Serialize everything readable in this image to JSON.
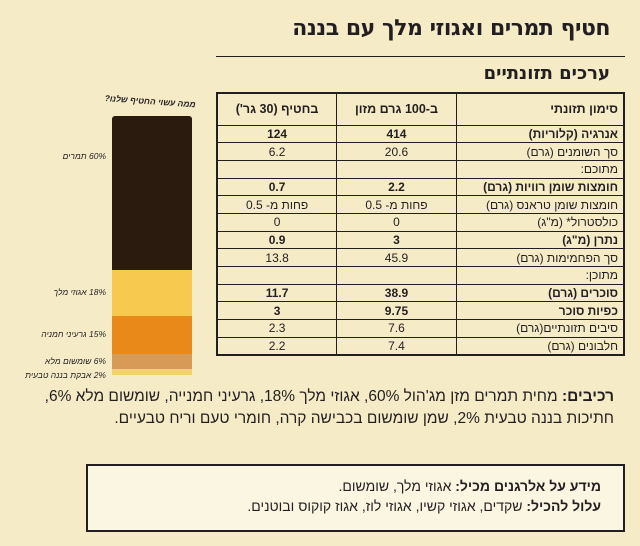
{
  "product": {
    "title": "חטיף תמרים ואגוזי מלך עם בננה"
  },
  "nutrition": {
    "section_title": "ערכים תזונתיים",
    "headers": [
      "סימון תזונתי",
      "ב-100 גרם מזון",
      "בחטיף (30 גר')"
    ],
    "rows": [
      {
        "label": "אנרגיה (קלוריות)",
        "per100": "414",
        "perServing": "124",
        "bold": true
      },
      {
        "label": "סך השומנים (גרם)",
        "per100": "20.6",
        "perServing": "6.2",
        "bold": false
      },
      {
        "label": "מתוכם:",
        "per100": "",
        "perServing": "",
        "bold": false
      },
      {
        "label": "חומצות שומן רוויות (גרם)",
        "per100": "2.2",
        "perServing": "0.7",
        "bold": true
      },
      {
        "label": "חומצות שומן טראנס (גרם)",
        "per100": "פחות מ- 0.5",
        "perServing": "פחות מ- 0.5",
        "bold": false
      },
      {
        "label": "כולסטרול* (מ\"ג)",
        "per100": "0",
        "perServing": "0",
        "bold": false
      },
      {
        "label": "נתרן (מ\"ג)",
        "per100": "3",
        "perServing": "0.9",
        "bold": true
      },
      {
        "label": "סך הפחמימות (גרם)",
        "per100": "45.9",
        "perServing": "13.8",
        "bold": false
      },
      {
        "label": "מתוכן:",
        "per100": "",
        "perServing": "",
        "bold": false
      },
      {
        "label": "סוכרים (גרם)",
        "per100": "38.9",
        "perServing": "11.7",
        "bold": true
      },
      {
        "label": "כפיות סוכר",
        "per100": "9.75",
        "perServing": "3",
        "bold": true
      },
      {
        "label": "סיבים תזונתיים(גרם)",
        "per100": "7.6",
        "perServing": "2.3",
        "bold": false
      },
      {
        "label": "חלבונים (גרם)",
        "per100": "7.4",
        "perServing": "2.2",
        "bold": false
      }
    ]
  },
  "composition": {
    "caption": "ממה עשוי החטיף שלנו?",
    "segments": [
      {
        "label": "60% תמרים",
        "percent": 60,
        "color": "#2b1a0e"
      },
      {
        "label": "18% אגוזי מלך",
        "percent": 18,
        "color": "#f7c94f"
      },
      {
        "label": "15% גרעיני חמניה",
        "percent": 15,
        "color": "#e9891a"
      },
      {
        "label": "6% שומשום מלא",
        "percent": 6,
        "color": "#d79a57"
      },
      {
        "label": "2% אבקת בננה טבעית",
        "percent": 2,
        "color": "#f2d26a"
      }
    ]
  },
  "ingredients": {
    "label": "רכיבים:",
    "text": "מחית תמרים מזן מג'הול 60%, אגוזי מלך 18%, גרעיני חמנייה, שומשום מלא 6%, חתיכות בננה טבעית 2%, שמן שומשום בכבישה קרה, חומרי טעם וריח טבעיים."
  },
  "allergens": {
    "contains_label": "מידע על אלרגנים מכיל:",
    "contains_text": "אגוזי מלך, שומשום.",
    "may_contain_label": "עלול להכיל:",
    "may_contain_text": "שקדים, אגוזי קשיו, אגוזי לוז, אגוז קוקוס ובוטנים."
  }
}
